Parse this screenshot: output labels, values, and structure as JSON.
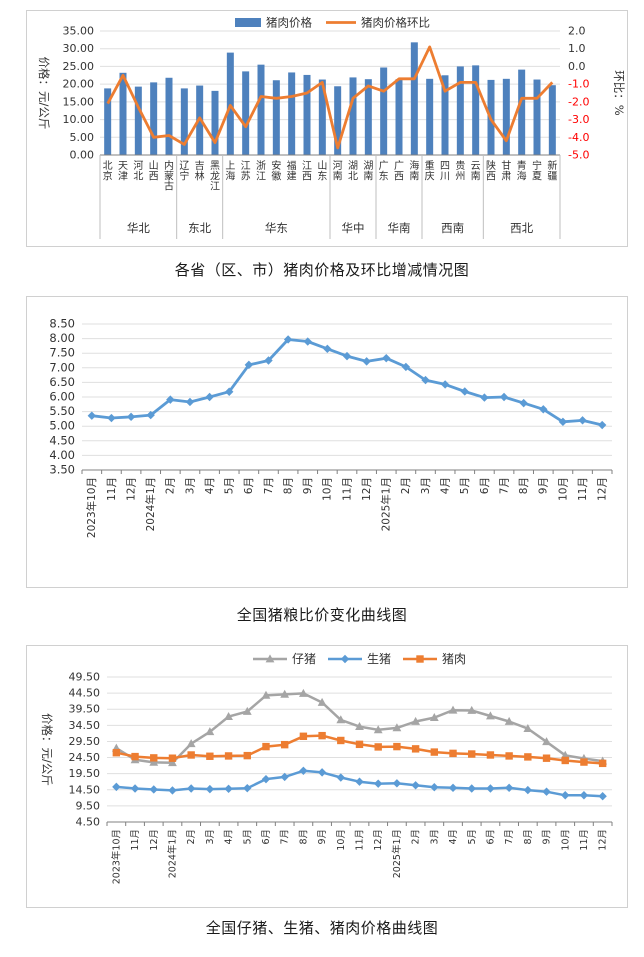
{
  "colors": {
    "bar_blue": "#4e81bd",
    "orange": "#ed7d31",
    "light_blue": "#5b9bd5",
    "gray": "#a5a5a5",
    "grid": "#dfdfdf",
    "axis": "#808080",
    "tick_text": "#333333",
    "negative_tick": "#ff0000",
    "separator": "#bfbfbf"
  },
  "chart_data": [
    {
      "id": "province-pork",
      "type": "bar+line",
      "caption": "各省（区、市）猪肉价格及环比增减情况图",
      "legend": [
        {
          "label": "猪肉价格",
          "kind": "bar",
          "color": "#4e81bd"
        },
        {
          "label": "猪肉价格环比",
          "kind": "line",
          "color": "#ed7d31"
        }
      ],
      "ylabel_left": "价格：元/公斤",
      "ylabel_right": "环比：%",
      "y_left": {
        "min": 0,
        "max": 35,
        "step": 5
      },
      "y_right": {
        "min": -5,
        "max": 2,
        "step": 1
      },
      "regions": [
        {
          "name": "华北",
          "provinces": [
            "北京",
            "天津",
            "河北",
            "山西",
            "内蒙古"
          ]
        },
        {
          "name": "东北",
          "provinces": [
            "辽宁",
            "吉林",
            "黑龙江"
          ]
        },
        {
          "name": "华东",
          "provinces": [
            "上海",
            "江苏",
            "浙江",
            "安徽",
            "福建",
            "江西",
            "山东"
          ]
        },
        {
          "name": "华中",
          "provinces": [
            "河南",
            "湖北",
            "湖南"
          ]
        },
        {
          "name": "华南",
          "provinces": [
            "广东",
            "广西",
            "海南"
          ]
        },
        {
          "name": "西南",
          "provinces": [
            "重庆",
            "四川",
            "贵州",
            "云南"
          ]
        },
        {
          "name": "西北",
          "provinces": [
            "陕西",
            "甘肃",
            "青海",
            "宁夏",
            "新疆"
          ]
        }
      ],
      "bar_values": [
        18.8,
        23.2,
        19.3,
        20.5,
        21.8,
        18.8,
        19.6,
        18.1,
        28.9,
        23.6,
        25.5,
        21.1,
        23.3,
        22.6,
        21.3,
        19.4,
        21.9,
        21.4,
        24.7,
        21.4,
        31.8,
        21.5,
        22.5,
        25.0,
        25.3,
        21.2,
        21.5,
        24.1,
        21.3,
        19.7
      ],
      "line_values": [
        -2.1,
        -0.5,
        -2.3,
        -4.0,
        -3.9,
        -4.4,
        -2.9,
        -4.3,
        -2.2,
        -3.4,
        -1.7,
        -1.8,
        -1.7,
        -1.5,
        -0.9,
        -4.6,
        -1.8,
        -1.1,
        -1.4,
        -0.7,
        -0.7,
        1.1,
        -1.4,
        -0.9,
        -0.9,
        -3.0,
        -4.2,
        -1.8,
        -1.8,
        -0.9
      ]
    },
    {
      "id": "pig-grain-ratio",
      "type": "line",
      "caption": "全国猪粮比价变化曲线图",
      "color": "#5b9bd5",
      "marker": "diamond",
      "ylim": {
        "min": 3.5,
        "max": 8.5,
        "step": 0.5
      },
      "months": [
        "2023年10月",
        "11月",
        "12月",
        "2024年1月",
        "2月",
        "3月",
        "4月",
        "5月",
        "6月",
        "7月",
        "8月",
        "9月",
        "10月",
        "11月",
        "12月",
        "2025年1月",
        "2月",
        "3月",
        "4月",
        "5月",
        "6月",
        "7月",
        "8月",
        "9月",
        "10月",
        "11月",
        "12月"
      ],
      "values": [
        5.36,
        5.28,
        5.32,
        5.38,
        5.91,
        5.83,
        6.0,
        6.18,
        7.1,
        7.25,
        7.97,
        7.9,
        7.65,
        7.4,
        7.22,
        7.33,
        7.03,
        6.58,
        6.43,
        6.19,
        5.98,
        6.0,
        5.79,
        5.58,
        5.15,
        5.2,
        5.04
      ]
    },
    {
      "id": "piglet-hog-pork-price",
      "type": "multi-line",
      "caption": "全国仔猪、生猪、猪肉价格曲线图",
      "ylabel": "价格：元/公斤",
      "ylim": {
        "min": 4.5,
        "max": 49.5,
        "step": 5
      },
      "months": [
        "2023年10月",
        "11月",
        "12月",
        "2024年1月",
        "2月",
        "3月",
        "4月",
        "5月",
        "6月",
        "7月",
        "8月",
        "9月",
        "10月",
        "11月",
        "12月",
        "2025年1月",
        "2月",
        "3月",
        "4月",
        "5月",
        "6月",
        "7月",
        "8月",
        "9月",
        "10月",
        "11月",
        "12月"
      ],
      "series": [
        {
          "name": "仔猪",
          "color": "#a5a5a5",
          "marker": "triangle",
          "values": [
            27.4,
            23.8,
            23.0,
            22.9,
            28.8,
            32.5,
            37.2,
            38.8,
            43.8,
            44.1,
            44.4,
            41.6,
            36.2,
            34.1,
            33.1,
            33.7,
            35.7,
            36.9,
            39.2,
            39.1,
            37.4,
            35.7,
            33.5,
            29.4,
            25.2,
            24.2,
            23.4
          ]
        },
        {
          "name": "生猪",
          "color": "#5b9bd5",
          "marker": "diamond",
          "values": [
            15.4,
            14.9,
            14.6,
            14.3,
            14.9,
            14.7,
            14.8,
            15.0,
            17.8,
            18.5,
            20.4,
            19.9,
            18.3,
            17.0,
            16.4,
            16.5,
            15.9,
            15.3,
            15.1,
            14.9,
            14.9,
            15.1,
            14.4,
            13.9,
            12.8,
            12.8,
            12.5
          ]
        },
        {
          "name": "猪肉",
          "color": "#ed7d31",
          "marker": "square",
          "values": [
            26.0,
            24.8,
            24.4,
            24.3,
            25.3,
            24.9,
            25.0,
            25.1,
            27.9,
            28.5,
            31.1,
            31.3,
            29.8,
            28.6,
            27.8,
            27.9,
            27.2,
            26.2,
            25.8,
            25.6,
            25.3,
            25.0,
            24.7,
            24.3,
            23.6,
            23.1,
            22.7
          ]
        }
      ]
    }
  ]
}
